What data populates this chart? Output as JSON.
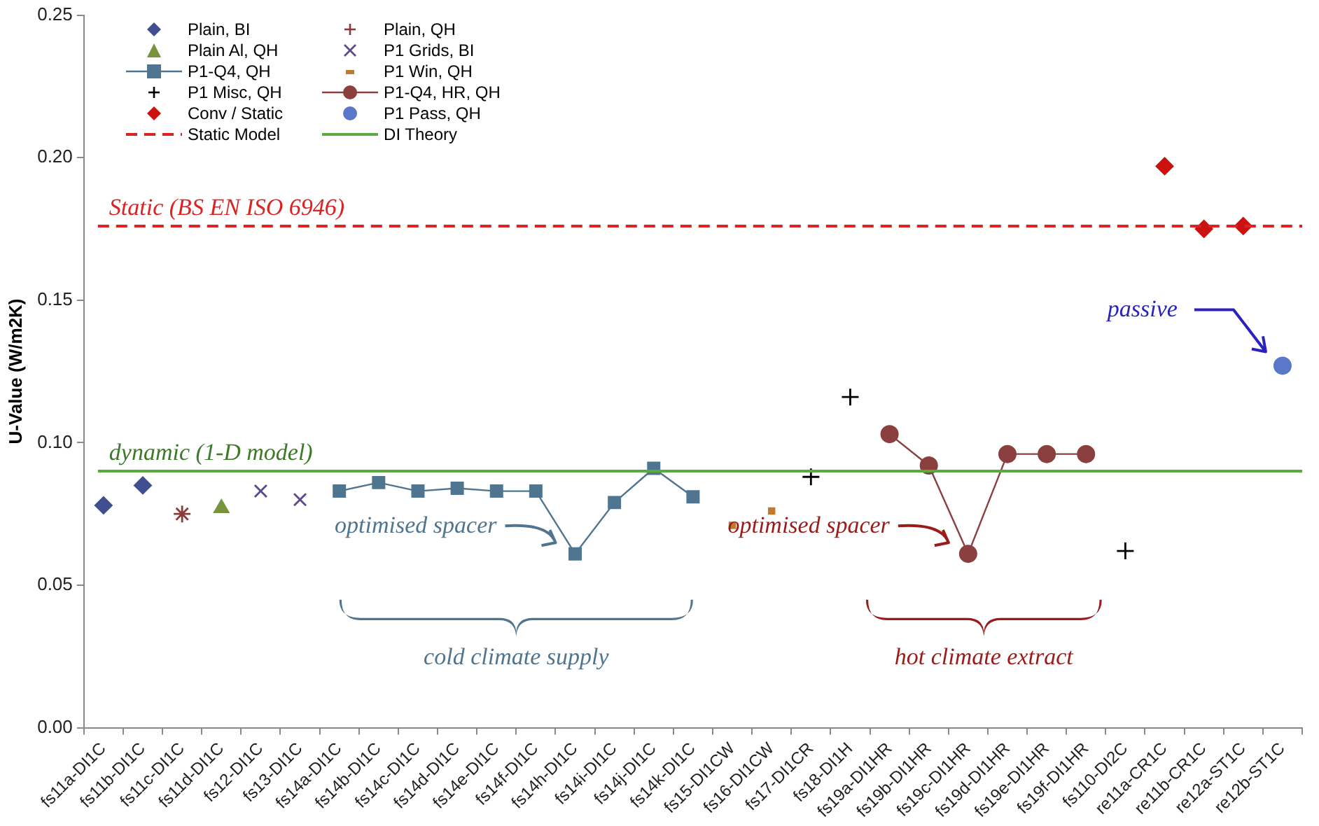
{
  "chart_data": {
    "type": "scatter",
    "ylabel": "U-Value (W/m2K)",
    "categories": [
      "fs11a-DI1C",
      "fs11b-DI1C",
      "fs11c-DI1C",
      "fs11d-DI1C",
      "fs12-DI1C",
      "fs13-DI1C",
      "fs14a-DI1C",
      "fs14b-DI1C",
      "fs14c-DI1C",
      "fs14d-DI1C",
      "fs14e-DI1C",
      "fs14f-DI1C",
      "fs14h-DI1C",
      "fs14i-DI1C",
      "fs14j-DI1C",
      "fs14k-DI1C",
      "fs15-DI1CW",
      "fs16-DI1CW",
      "fs17-DI1CR",
      "fs18-DI1H",
      "fs19a-DI1HR",
      "fs19b-DI1HR",
      "fs19c-DI1HR",
      "fs19d-DI1HR",
      "fs19e-DI1HR",
      "fs19f-DI1HR",
      "fs110-DI2C",
      "re11a-CR1C",
      "re11b-CR1C",
      "re12a-ST1C",
      "re12b-ST1C"
    ],
    "series": [
      {
        "name": "Plain, BI",
        "marker": "diamond",
        "color": "#3f4f8f",
        "x": [
          "fs11a-DI1C",
          "fs11b-DI1C"
        ],
        "values": [
          0.078,
          0.085
        ]
      },
      {
        "name": "Plain, QH",
        "marker": "cross",
        "color": "#8b3a3a",
        "x": [
          "fs11c-DI1C"
        ],
        "values": [
          0.075
        ]
      },
      {
        "name": "Plain Al, QH",
        "marker": "triangle",
        "color": "#77933c",
        "x": [
          "fs11d-DI1C"
        ],
        "values": [
          0.077
        ]
      },
      {
        "name": "P1 Grids, BI",
        "marker": "cross",
        "color": "#5a4a8a",
        "x": [
          "fs12-DI1C",
          "fs13-DI1C"
        ],
        "values": [
          0.083,
          0.08
        ]
      },
      {
        "name": "P1-Q4, QH",
        "type": "line",
        "marker": "square",
        "color": "#4f7590",
        "x": [
          "fs14a-DI1C",
          "fs14b-DI1C",
          "fs14c-DI1C",
          "fs14d-DI1C",
          "fs14e-DI1C",
          "fs14f-DI1C",
          "fs14h-DI1C",
          "fs14i-DI1C",
          "fs14j-DI1C",
          "fs14k-DI1C"
        ],
        "values": [
          0.083,
          0.086,
          0.083,
          0.084,
          0.083,
          0.083,
          0.061,
          0.079,
          0.091,
          0.081
        ]
      },
      {
        "name": "P1 Win, QH",
        "marker": "square",
        "color": "#c07a30",
        "x": [
          "fs15-DI1CW",
          "fs16-DI1CW"
        ],
        "values": [
          0.071,
          0.076
        ]
      },
      {
        "name": "P1 Misc, QH",
        "marker": "cross",
        "color": "#000000",
        "x": [
          "fs17-DI1CR",
          "fs18-DI1H",
          "fs110-DI2C"
        ],
        "values": [
          0.088,
          0.116,
          0.062
        ]
      },
      {
        "name": "P1-Q4, HR, QH",
        "type": "line",
        "marker": "circle",
        "color": "#8b3f3f",
        "x": [
          "fs19a-DI1HR",
          "fs19b-DI1HR",
          "fs19c-DI1HR",
          "fs19d-DI1HR",
          "fs19e-DI1HR",
          "fs19f-DI1HR"
        ],
        "values": [
          0.103,
          0.092,
          0.061,
          0.096,
          0.096,
          0.096
        ]
      },
      {
        "name": "Conv / Static",
        "marker": "diamond",
        "color": "#cc1111",
        "x": [
          "re11a-CR1C",
          "re11b-CR1C",
          "re12a-ST1C"
        ],
        "values": [
          0.197,
          0.175,
          0.176
        ]
      },
      {
        "name": "P1 Pass, QH",
        "marker": "circle",
        "color": "#5b78c8",
        "x": [
          "re12b-ST1C"
        ],
        "values": [
          0.127
        ]
      }
    ],
    "ref_lines": [
      {
        "axis": "y",
        "value": 0.176,
        "label": "Static Model",
        "color": "#dd2222",
        "line_style": "dashed"
      },
      {
        "axis": "y",
        "value": 0.09,
        "label": "DI Theory",
        "color": "#5aaa40",
        "line_style": "solid"
      }
    ],
    "annotations": [
      {
        "text": "Static (BS EN ISO 6946)",
        "x": "fs11a-DI1C",
        "y": 0.176
      },
      {
        "text": "dynamic (1-D model)",
        "x": "fs11a-DI1C",
        "y": 0.09
      },
      "optimised spacer",
      "optimised spacer",
      "passive",
      "cold climate supply",
      "hot climate extract"
    ],
    "ylim": [
      0,
      0.25
    ],
    "yticks": [
      {
        "value": 0,
        "label": "0.00"
      },
      {
        "value": 0.05,
        "label": "0.05"
      },
      {
        "value": 0.1,
        "label": "0.10"
      },
      {
        "value": 0.15,
        "label": "0.15"
      },
      {
        "value": 0.2,
        "label": "0.20"
      },
      {
        "value": 0.25,
        "label": "0.25"
      }
    ],
    "grid": false,
    "legend": "top left"
  }
}
